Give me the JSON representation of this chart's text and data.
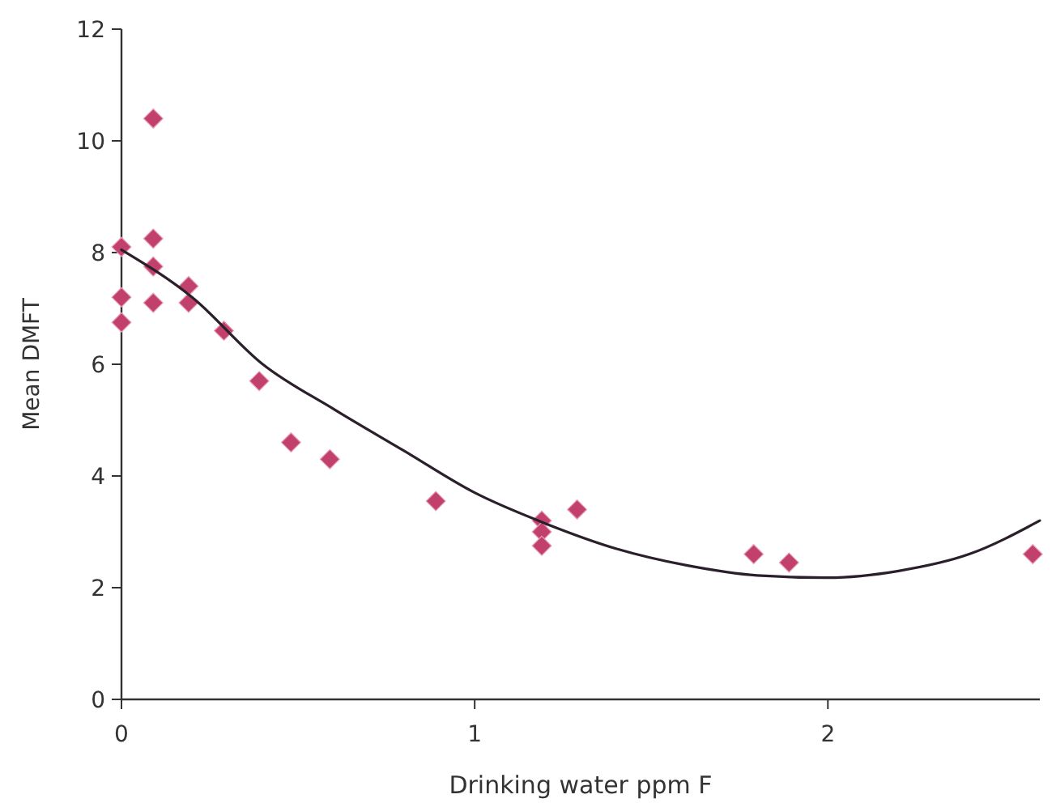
{
  "chart_data": {
    "type": "scatter",
    "xlabel": "Drinking water ppm F",
    "ylabel": "Mean DMFT",
    "xlim": [
      0,
      2.6
    ],
    "ylim": [
      0,
      12
    ],
    "xticks": [
      0,
      1,
      2
    ],
    "yticks": [
      0,
      2,
      4,
      6,
      8,
      10,
      12
    ],
    "grid": false,
    "series": [
      {
        "color": "#c2406c",
        "marker": "diamond",
        "x": [
          0,
          0,
          0,
          0.09,
          0.09,
          0.09,
          0.09,
          0.19,
          0.19,
          0.29,
          0.39,
          0.48,
          0.59,
          0.89,
          1.19,
          1.19,
          1.19,
          1.29,
          1.79,
          1.89,
          2.58
        ],
        "values": [
          8.1,
          7.2,
          6.75,
          10.4,
          8.25,
          7.75,
          7.1,
          7.4,
          7.1,
          6.6,
          5.7,
          4.6,
          4.3,
          3.55,
          3.2,
          3.0,
          2.75,
          3.4,
          2.6,
          2.45,
          2.6
        ]
      },
      {
        "type": "line",
        "color": "#2a1f2a",
        "marker": "none",
        "line_style": "solid",
        "x": [
          0,
          0.2,
          0.4,
          0.6,
          0.8,
          1.0,
          1.2,
          1.4,
          1.6,
          1.8,
          2.0,
          2.2,
          2.4,
          2.6
        ],
        "values": [
          8.05,
          7.2,
          6.0,
          5.2,
          4.45,
          3.7,
          3.15,
          2.7,
          2.4,
          2.22,
          2.18,
          2.3,
          2.6,
          3.2
        ]
      }
    ]
  }
}
